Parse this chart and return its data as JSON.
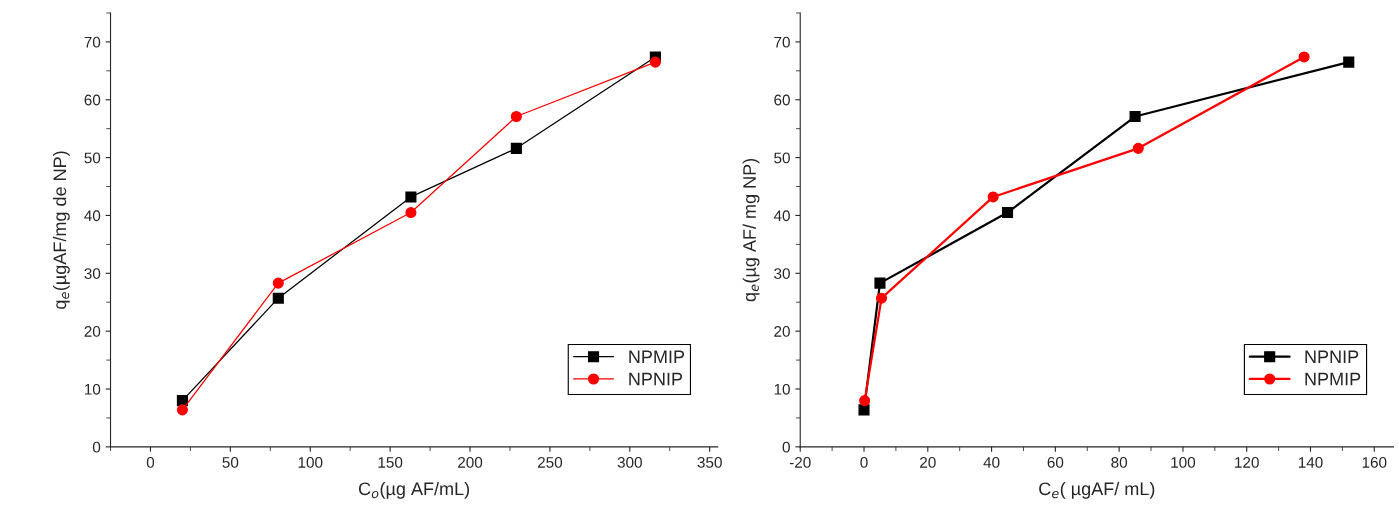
{
  "chart_data": [
    {
      "type": "line",
      "xlabel": "C$_{o}$(µg AF/mL)",
      "ylabel": "q$_{e}$(µgAF/mg de NP)",
      "x": [
        20,
        80,
        163,
        229,
        316
      ],
      "xlim": [
        -25,
        355
      ],
      "xticks": [
        0,
        50,
        100,
        150,
        200,
        250,
        300,
        350
      ],
      "ylim": [
        0,
        75
      ],
      "yticks": [
        0,
        10,
        20,
        30,
        40,
        50,
        60,
        70
      ],
      "legend": "bottom right",
      "grid": false,
      "series": [
        {
          "name": "NPMIP",
          "color": "#000000",
          "marker": "square",
          "values": [
            8.0,
            25.7,
            43.2,
            51.6,
            67.4
          ]
        },
        {
          "name": "NPNIP",
          "color": "#ff0000",
          "marker": "circle",
          "values": [
            6.4,
            28.3,
            40.5,
            57.1,
            66.5
          ]
        }
      ]
    },
    {
      "type": "line",
      "xlabel": "C$_{e}$( µgAF/ mL)",
      "ylabel": "q$_{e}$(µg AF/ mg NP)",
      "xlim": [
        -20,
        166
      ],
      "xticks": [
        -20,
        0,
        20,
        40,
        60,
        80,
        100,
        120,
        140,
        160
      ],
      "ylim": [
        0,
        75
      ],
      "yticks": [
        0,
        10,
        20,
        30,
        40,
        50,
        60,
        70
      ],
      "legend": "bottom right",
      "grid": false,
      "series": [
        {
          "name": "NPNIP",
          "color": "#000000",
          "marker": "square",
          "x": [
            0,
            5,
            45,
            85,
            152
          ],
          "values": [
            6.4,
            28.3,
            40.5,
            57.1,
            66.5
          ]
        },
        {
          "name": "NPMIP",
          "color": "#ff0000",
          "marker": "circle",
          "x": [
            0.2,
            5.5,
            40.5,
            86,
            138
          ],
          "values": [
            8.0,
            25.7,
            43.2,
            51.6,
            67.4
          ]
        }
      ]
    }
  ]
}
